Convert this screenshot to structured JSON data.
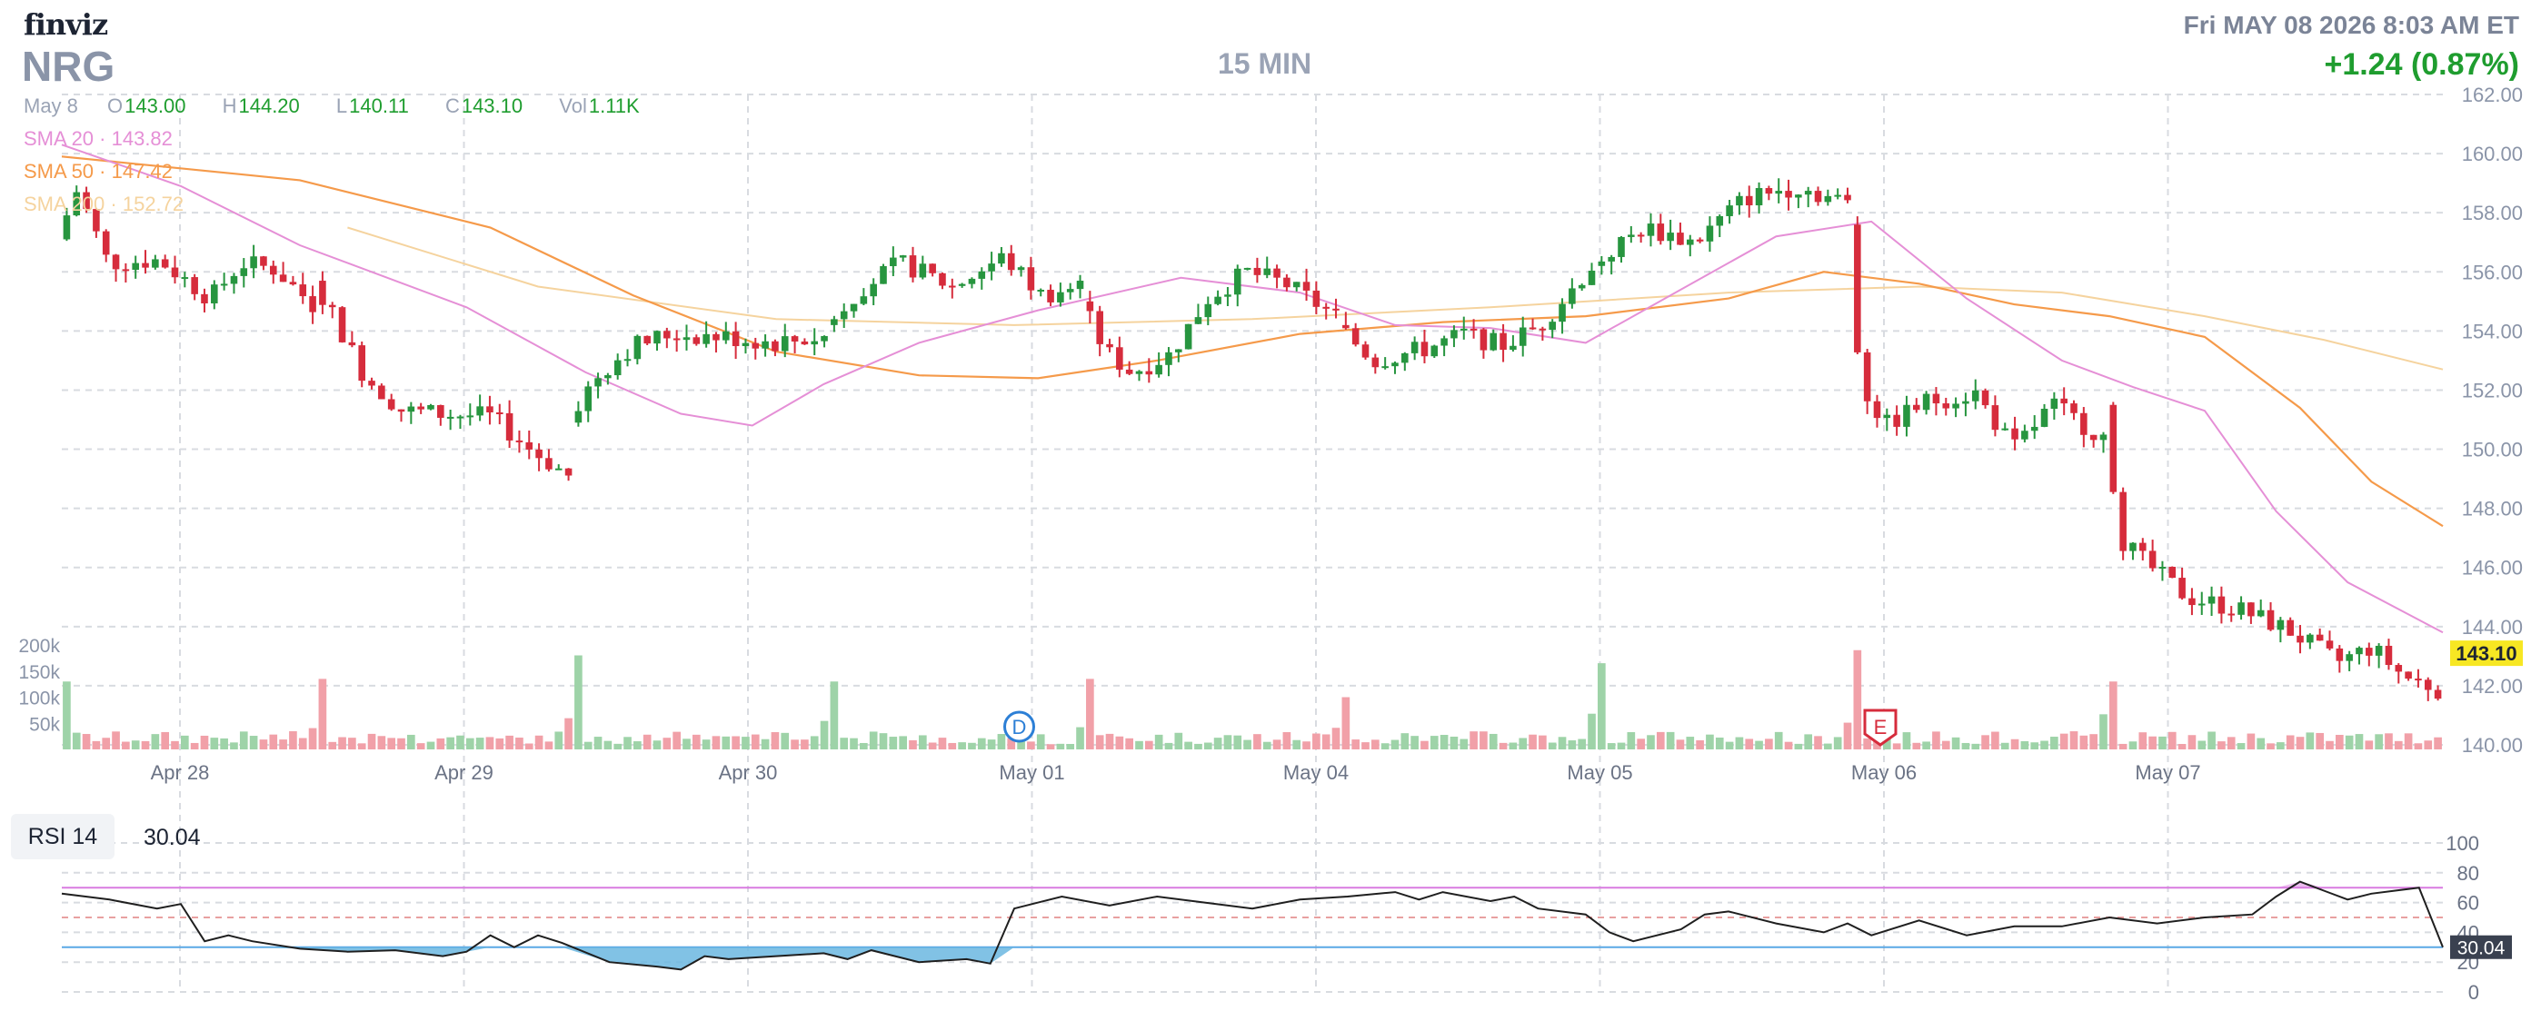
{
  "header": {
    "logo": "finviz",
    "ticker": "NRG",
    "timeframe": "15 MIN",
    "datetime": "Fri MAY 08 2026 8:03 AM ET",
    "change": "+1.24 (0.87%)"
  },
  "ohlc": {
    "date": "May 8",
    "o_label": "O",
    "o": "143.00",
    "h_label": "H",
    "h": "144.20",
    "l_label": "L",
    "l": "140.11",
    "c_label": "C",
    "c": "143.10",
    "vol_label": "Vol",
    "vol": "1.11K"
  },
  "sma_legend": [
    {
      "label": "SMA 20",
      "value": "143.82",
      "color": "#e58fd6"
    },
    {
      "label": "SMA 50",
      "value": "147.42",
      "color": "#f59a4a"
    },
    {
      "label": "SMA 200",
      "value": "152.72",
      "color": "#f5d39e"
    }
  ],
  "rsi": {
    "label": "RSI 14",
    "value": "30.04"
  },
  "colors": {
    "up": "#27953f",
    "down": "#d62c3c",
    "vol_up": "#9ed3a8",
    "vol_down": "#f1a0a8",
    "rsi_line": "#1f1f1f",
    "rsi_fill": "#6bb7e0",
    "rsi_hi": "#d97be0",
    "rsi_lo": "#5aa8e6",
    "grid": "#d8dbe0",
    "last_price_bg": "#f7e723"
  },
  "chart_data": [
    {
      "type": "candlestick",
      "title": "NRG",
      "timeframe": "15 MIN",
      "ylim": [
        140,
        162
      ],
      "y_ticks": [
        "140.00",
        "142.00",
        "144.00",
        "146.00",
        "148.00",
        "150.00",
        "152.00",
        "154.00",
        "156.00",
        "158.00",
        "160.00",
        "162.00"
      ],
      "x_ticks": [
        "Apr 28",
        "Apr 29",
        "Apr 30",
        "May 01",
        "May 04",
        "May 05",
        "May 06",
        "May 07"
      ],
      "volume_ticks": [
        "50k",
        "100k",
        "150k",
        "200k"
      ],
      "last_price": "143.10",
      "events": [
        {
          "label": "D",
          "session": "May 01"
        },
        {
          "label": "E",
          "session": "May 06"
        }
      ],
      "sessions": [
        {
          "date": "Apr 28",
          "open": 157.1,
          "close": 154.9,
          "high": 159.2,
          "low": 155.4,
          "close_path": [
            [
              0,
              157.1
            ],
            [
              0.08,
              158.8
            ],
            [
              0.2,
              156.3
            ],
            [
              0.4,
              156.4
            ],
            [
              0.6,
              155.1
            ],
            [
              0.72,
              156.3
            ],
            [
              0.85,
              156.1
            ],
            [
              1,
              154.9
            ]
          ]
        },
        {
          "date": "Apr 29",
          "open": 155.7,
          "close": 149.1,
          "high": 156.2,
          "low": 148.8,
          "close_path": [
            [
              0,
              155.7
            ],
            [
              0.1,
              154.2
            ],
            [
              0.2,
              152.5
            ],
            [
              0.35,
              151.3
            ],
            [
              0.5,
              151.2
            ],
            [
              0.7,
              151.1
            ],
            [
              0.85,
              150.0
            ],
            [
              1,
              149.1
            ]
          ]
        },
        {
          "date": "Apr 30",
          "open": 150.9,
          "close": 153.8,
          "high": 154.6,
          "low": 150.6,
          "close_path": [
            [
              0,
              150.9
            ],
            [
              0.1,
              152.4
            ],
            [
              0.25,
              153.5
            ],
            [
              0.4,
              153.9
            ],
            [
              0.6,
              153.8
            ],
            [
              0.8,
              153.6
            ],
            [
              1,
              153.8
            ]
          ]
        },
        {
          "date": "May 01",
          "open": 154.2,
          "close": 155.5,
          "high": 157.0,
          "low": 153.8,
          "close_path": [
            [
              0,
              154.2
            ],
            [
              0.15,
              155.5
            ],
            [
              0.3,
              156.3
            ],
            [
              0.5,
              155.5
            ],
            [
              0.7,
              156.5
            ],
            [
              0.85,
              155.2
            ],
            [
              1,
              155.5
            ]
          ]
        },
        {
          "date": "May 04",
          "open": 155.0,
          "close": 154.5,
          "high": 156.6,
          "low": 151.9,
          "close_path": [
            [
              0,
              155.0
            ],
            [
              0.1,
              153.3
            ],
            [
              0.2,
              152.6
            ],
            [
              0.35,
              153.2
            ],
            [
              0.5,
              155.1
            ],
            [
              0.65,
              156.0
            ],
            [
              0.8,
              155.6
            ],
            [
              1,
              154.5
            ]
          ]
        },
        {
          "date": "May 05",
          "open": 154.2,
          "close": 156.2,
          "high": 158.2,
          "low": 152.7,
          "close_path": [
            [
              0,
              154.2
            ],
            [
              0.15,
              153.0
            ],
            [
              0.35,
              153.4
            ],
            [
              0.5,
              153.9
            ],
            [
              0.65,
              153.5
            ],
            [
              0.8,
              154.2
            ],
            [
              1,
              156.2
            ]
          ]
        },
        {
          "date": "May 05b",
          "open": 156.2,
          "close": 158.3,
          "high": 159.2,
          "low": 155.9,
          "close_path": [
            [
              0,
              156.2
            ],
            [
              0.2,
              157.5
            ],
            [
              0.4,
              157.0
            ],
            [
              0.6,
              158.5
            ],
            [
              0.8,
              158.9
            ],
            [
              1,
              158.3
            ]
          ]
        },
        {
          "date": "May 06",
          "open": 157.6,
          "close": 150.4,
          "high": 158.1,
          "low": 149.4,
          "close_path": [
            [
              0,
              157.6
            ],
            [
              0.05,
              152.2
            ],
            [
              0.15,
              150.8
            ],
            [
              0.3,
              151.6
            ],
            [
              0.5,
              151.9
            ],
            [
              0.65,
              150.0
            ],
            [
              0.8,
              151.5
            ],
            [
              1,
              150.4
            ]
          ]
        },
        {
          "date": "May 07",
          "open": 151.5,
          "close": 141.9,
          "high": 151.8,
          "low": 141.6,
          "close_path": [
            [
              0,
              151.5
            ],
            [
              0.05,
              147.0
            ],
            [
              0.12,
              146.2
            ],
            [
              0.25,
              145.0
            ],
            [
              0.4,
              144.6
            ],
            [
              0.55,
              143.9
            ],
            [
              0.7,
              142.8
            ],
            [
              0.8,
              143.3
            ],
            [
              0.9,
              142.3
            ],
            [
              1,
              141.9
            ]
          ]
        }
      ],
      "sma20_path": [
        [
          0,
          160.3
        ],
        [
          0.05,
          158.9
        ],
        [
          0.1,
          156.9
        ],
        [
          0.17,
          154.8
        ],
        [
          0.22,
          152.6
        ],
        [
          0.26,
          151.2
        ],
        [
          0.29,
          150.8
        ],
        [
          0.32,
          152.2
        ],
        [
          0.36,
          153.6
        ],
        [
          0.41,
          154.7
        ],
        [
          0.47,
          155.8
        ],
        [
          0.52,
          155.3
        ],
        [
          0.56,
          154.2
        ],
        [
          0.6,
          154.1
        ],
        [
          0.64,
          153.6
        ],
        [
          0.68,
          155.4
        ],
        [
          0.72,
          157.2
        ],
        [
          0.76,
          157.7
        ],
        [
          0.8,
          155.1
        ],
        [
          0.84,
          153.0
        ],
        [
          0.87,
          152.1
        ],
        [
          0.9,
          151.3
        ],
        [
          0.93,
          147.9
        ],
        [
          0.96,
          145.5
        ],
        [
          1,
          143.8
        ]
      ],
      "sma50_path": [
        [
          0,
          159.9
        ],
        [
          0.1,
          159.1
        ],
        [
          0.18,
          157.5
        ],
        [
          0.24,
          155.2
        ],
        [
          0.3,
          153.3
        ],
        [
          0.36,
          152.5
        ],
        [
          0.41,
          152.4
        ],
        [
          0.46,
          153.0
        ],
        [
          0.52,
          153.9
        ],
        [
          0.58,
          154.3
        ],
        [
          0.64,
          154.5
        ],
        [
          0.7,
          155.1
        ],
        [
          0.74,
          156.0
        ],
        [
          0.78,
          155.6
        ],
        [
          0.82,
          154.9
        ],
        [
          0.86,
          154.5
        ],
        [
          0.9,
          153.8
        ],
        [
          0.94,
          151.4
        ],
        [
          0.97,
          148.9
        ],
        [
          1,
          147.4
        ]
      ],
      "sma200_path": [
        [
          0.12,
          157.5
        ],
        [
          0.2,
          155.5
        ],
        [
          0.3,
          154.4
        ],
        [
          0.4,
          154.2
        ],
        [
          0.5,
          154.4
        ],
        [
          0.6,
          154.8
        ],
        [
          0.7,
          155.3
        ],
        [
          0.78,
          155.5
        ],
        [
          0.84,
          155.3
        ],
        [
          0.9,
          154.5
        ],
        [
          0.95,
          153.7
        ],
        [
          1,
          152.7
        ]
      ],
      "volume_peaks": [
        {
          "date": "Apr 28",
          "value": 130000
        },
        {
          "date": "Apr 29",
          "value": 135000
        },
        {
          "date": "Apr 30",
          "value": 180000
        },
        {
          "date": "May 01",
          "value": 130000
        },
        {
          "date": "May 04",
          "value": 135000
        },
        {
          "date": "May 05",
          "value": 100000
        },
        {
          "date": "May 06",
          "value": 165000
        },
        {
          "date": "May 07",
          "value": 190000
        }
      ]
    },
    {
      "type": "line",
      "title": "RSI 14",
      "ylim": [
        0,
        100
      ],
      "y_ticks": [
        "0",
        "20",
        "40",
        "60",
        "80",
        "100"
      ],
      "levels": [
        30,
        70
      ],
      "last_value": "30.04",
      "path": [
        [
          0,
          66
        ],
        [
          0.02,
          62
        ],
        [
          0.04,
          56
        ],
        [
          0.05,
          59
        ],
        [
          0.06,
          34
        ],
        [
          0.07,
          38
        ],
        [
          0.08,
          34
        ],
        [
          0.1,
          29
        ],
        [
          0.12,
          27
        ],
        [
          0.14,
          28
        ],
        [
          0.16,
          24
        ],
        [
          0.17,
          27
        ],
        [
          0.18,
          38
        ],
        [
          0.19,
          30
        ],
        [
          0.2,
          38
        ],
        [
          0.21,
          33
        ],
        [
          0.23,
          20
        ],
        [
          0.25,
          17
        ],
        [
          0.26,
          15
        ],
        [
          0.27,
          24
        ],
        [
          0.28,
          22
        ],
        [
          0.3,
          24
        ],
        [
          0.32,
          26
        ],
        [
          0.33,
          22
        ],
        [
          0.34,
          28
        ],
        [
          0.36,
          20
        ],
        [
          0.38,
          22
        ],
        [
          0.39,
          19
        ],
        [
          0.4,
          56
        ],
        [
          0.42,
          64
        ],
        [
          0.44,
          58
        ],
        [
          0.46,
          64
        ],
        [
          0.48,
          60
        ],
        [
          0.5,
          56
        ],
        [
          0.52,
          62
        ],
        [
          0.54,
          64
        ],
        [
          0.56,
          67
        ],
        [
          0.57,
          62
        ],
        [
          0.58,
          67
        ],
        [
          0.6,
          61
        ],
        [
          0.61,
          64
        ],
        [
          0.62,
          56
        ],
        [
          0.64,
          52
        ],
        [
          0.65,
          40
        ],
        [
          0.66,
          34
        ],
        [
          0.68,
          42
        ],
        [
          0.69,
          52
        ],
        [
          0.7,
          54
        ],
        [
          0.72,
          46
        ],
        [
          0.74,
          40
        ],
        [
          0.75,
          46
        ],
        [
          0.76,
          38
        ],
        [
          0.78,
          48
        ],
        [
          0.8,
          38
        ],
        [
          0.82,
          44
        ],
        [
          0.84,
          44
        ],
        [
          0.86,
          50
        ],
        [
          0.88,
          46
        ],
        [
          0.9,
          50
        ],
        [
          0.92,
          52
        ],
        [
          0.93,
          64
        ],
        [
          0.94,
          74
        ],
        [
          0.95,
          68
        ],
        [
          0.96,
          62
        ],
        [
          0.97,
          66
        ],
        [
          0.98,
          68
        ],
        [
          0.99,
          70
        ],
        [
          1,
          30.04
        ]
      ]
    }
  ]
}
